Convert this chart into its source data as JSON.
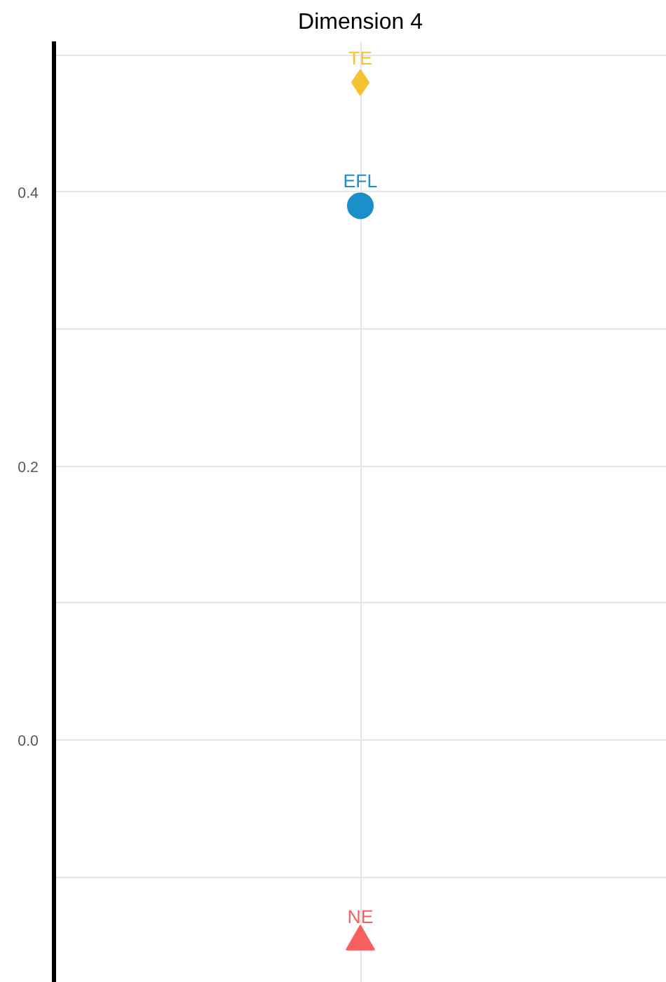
{
  "chart_data": {
    "type": "scatter",
    "title": "Dimension 4",
    "categories": [
      null
    ],
    "series": [
      {
        "name": "TE",
        "color": "#f5c232",
        "marker": "diamond",
        "values": [
          0.48
        ]
      },
      {
        "name": "EFL",
        "color": "#1a8fc9",
        "marker": "circle",
        "values": [
          0.39
        ]
      },
      {
        "name": "NE",
        "color": "#f8605f",
        "marker": "triangle",
        "values": [
          -0.147
        ]
      }
    ],
    "ylim": [
      -0.177,
      0.51
    ],
    "yticks": [
      {
        "value": -0.1,
        "label": null
      },
      "0.0",
      {
        "value": 0.1,
        "label": null
      },
      0.2,
      {
        "value": 0.3,
        "label": null
      },
      0.4,
      {
        "value": 0.5,
        "label": null
      }
    ],
    "grid": true
  }
}
